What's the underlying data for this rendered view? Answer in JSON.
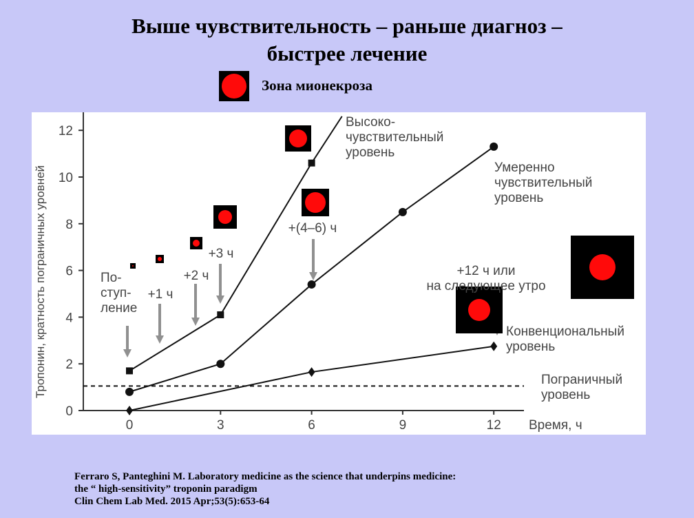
{
  "title_line1": "Выше чувствительность – раньше диагноз –",
  "title_line2": "быстрее лечение",
  "legend": {
    "label": "Зона мионекроза",
    "color": "#ff0a0a"
  },
  "reference": {
    "line1": "Ferraro S, Panteghini M.  Laboratory medicine as the science that underpins medicine:",
    "line2": "the “ high-sensitivity” troponin paradigm",
    "line3": "Clin Chem Lab Med. 2015 Apr;53(5):653-64"
  },
  "chart_data": {
    "type": "line",
    "xlabel": "Время, ч",
    "ylabel": "Тропонин, кратность пограничных уровней",
    "x_ticks": [
      0,
      3,
      6,
      9,
      12
    ],
    "y_ticks": [
      0,
      2,
      4,
      6,
      8,
      10,
      12
    ],
    "grid": false,
    "series": [
      {
        "name": "Высоко-чувствительный уровень",
        "marker": "square",
        "x": [
          0,
          3,
          6
        ],
        "y": [
          1.7,
          4.1,
          10.6
        ],
        "line_end": [
          7.0,
          12.6
        ],
        "label_lines": [
          "Высоко-",
          "чувствительный",
          "уровень"
        ]
      },
      {
        "name": "Умеренно чувствительный уровень",
        "marker": "circle",
        "x": [
          0,
          3,
          6,
          9,
          12
        ],
        "y": [
          0.8,
          2.0,
          5.4,
          8.5,
          11.3
        ],
        "label_lines": [
          "Умеренно",
          "чувствительный",
          "уровень"
        ]
      },
      {
        "name": "Конвенциональный уровень",
        "marker": "diamond",
        "x": [
          0,
          6,
          12
        ],
        "y": [
          0.0,
          1.65,
          2.75
        ],
        "label_lines": [
          "Конвенциональный",
          "уровень"
        ]
      }
    ],
    "threshold": {
      "y": 1.05,
      "label_lines": [
        "Пограничный",
        "уровень"
      ]
    },
    "annotations": [
      {
        "lines": [
          "По-",
          "ступ-",
          "ление"
        ]
      },
      {
        "lines": [
          "+1 ч"
        ]
      },
      {
        "lines": [
          "+2 ч"
        ]
      },
      {
        "lines": [
          "+3 ч"
        ]
      },
      {
        "lines": [
          "+(4–6) ч"
        ]
      },
      {
        "lines": [
          "+12 ч или",
          "на следующее утро"
        ]
      }
    ]
  }
}
